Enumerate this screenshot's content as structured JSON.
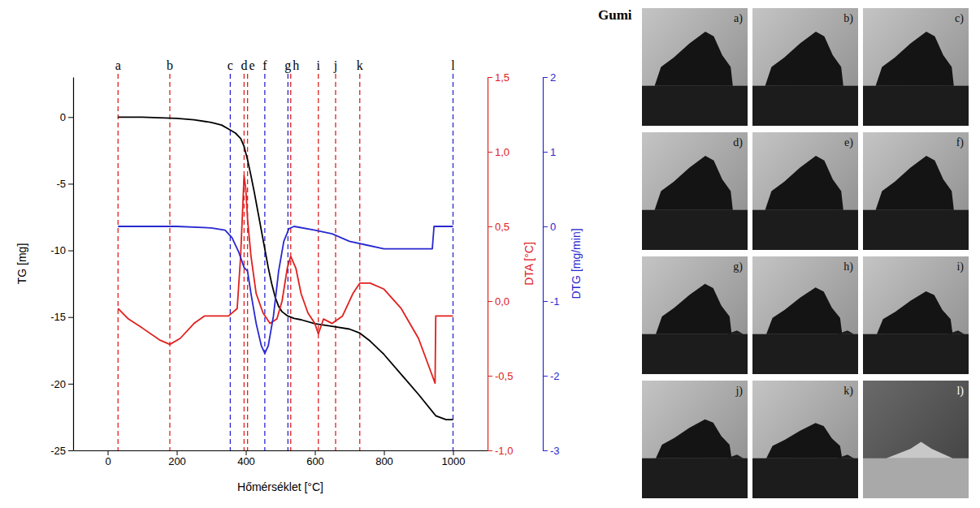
{
  "chart_data": {
    "type": "line",
    "x_label": "Hőmérséklet [°C]",
    "xlim": [
      -100,
      1100
    ],
    "xticks": [
      0,
      200,
      400,
      600,
      800,
      1000
    ],
    "y_label": "TG [mg]",
    "ylim": [
      -25,
      3
    ],
    "yticks": [
      -25,
      -20,
      -15,
      -10,
      -5,
      0
    ],
    "y2_label": "DTA [°C]",
    "y2lim": [
      -1,
      1.5
    ],
    "y2ticks": [
      {
        "value": -1,
        "label": "-1,0"
      },
      {
        "value": -0.5,
        "label": "-0,5"
      },
      {
        "value": 0,
        "label": "0,0"
      },
      {
        "value": 0.5,
        "label": "0,5"
      },
      {
        "value": 1,
        "label": "1,0"
      },
      {
        "value": 1.5,
        "label": "1,5"
      }
    ],
    "y3_label": "DTG [mg/min]",
    "y3lim": [
      -3,
      2
    ],
    "y3ticks": [
      -3,
      -2,
      -1,
      0,
      1,
      2
    ],
    "grid": false,
    "series": [
      {
        "color": "#000000",
        "x": [
          30,
          100,
          200,
          250,
          300,
          330,
          350,
          370,
          385,
          395,
          405,
          415,
          425,
          435,
          445,
          455,
          465,
          475,
          485,
          495,
          505,
          520,
          540,
          560,
          600,
          650,
          700,
          730,
          760,
          800,
          850,
          900,
          950,
          980,
          1000
        ],
        "values": [
          0,
          0,
          -0.1,
          -0.2,
          -0.4,
          -0.6,
          -0.9,
          -1.2,
          -1.6,
          -2.2,
          -3.2,
          -4.4,
          -5.7,
          -7.1,
          -8.5,
          -9.9,
          -11.3,
          -12.5,
          -13.5,
          -14.2,
          -14.6,
          -14.9,
          -15.1,
          -15.2,
          -15.5,
          -15.7,
          -15.9,
          -16.2,
          -16.8,
          -17.8,
          -19.3,
          -20.8,
          -22.4,
          -22.7,
          -22.7
        ]
      },
      {
        "color": "#e0201e",
        "axis": "y2",
        "x": [
          30,
          60,
          100,
          150,
          180,
          210,
          250,
          280,
          350,
          375,
          385,
          395,
          400,
          405,
          415,
          430,
          450,
          470,
          490,
          505,
          520,
          530,
          545,
          560,
          580,
          600,
          610,
          625,
          650,
          680,
          710,
          730,
          760,
          800,
          850,
          900,
          940,
          948,
          950,
          1000
        ],
        "values": [
          -0.05,
          -0.12,
          -0.18,
          -0.26,
          -0.29,
          -0.25,
          -0.15,
          -0.1,
          -0.1,
          -0.05,
          0.3,
          0.84,
          0.75,
          0.55,
          0.3,
          0.05,
          -0.08,
          -0.15,
          -0.12,
          0.0,
          0.22,
          0.3,
          0.22,
          0.05,
          -0.08,
          -0.15,
          -0.22,
          -0.12,
          -0.15,
          -0.1,
          0.05,
          0.12,
          0.12,
          0.08,
          -0.05,
          -0.25,
          -0.5,
          -0.55,
          -0.1,
          -0.1
        ]
      },
      {
        "color": "#2828d0",
        "axis": "y3",
        "x": [
          30,
          200,
          300,
          340,
          360,
          380,
          395,
          405,
          415,
          430,
          445,
          455,
          465,
          480,
          495,
          510,
          525,
          540,
          600,
          650,
          700,
          750,
          800,
          900,
          940,
          945,
          1000
        ],
        "values": [
          0,
          0,
          -0.02,
          -0.05,
          -0.15,
          -0.35,
          -0.55,
          -0.6,
          -0.9,
          -1.3,
          -1.6,
          -1.7,
          -1.6,
          -1.2,
          -0.6,
          -0.2,
          -0.03,
          0,
          -0.05,
          -0.1,
          -0.2,
          -0.25,
          -0.3,
          -0.3,
          -0.3,
          0,
          0
        ]
      }
    ],
    "events": [
      {
        "label": "a",
        "x": 30,
        "color": "#e0201e"
      },
      {
        "label": "b",
        "x": 180,
        "color": "#e0201e"
      },
      {
        "label": "c",
        "x": 355,
        "color": "#2828d0"
      },
      {
        "label": "d",
        "x": 395,
        "color": "#e0201e"
      },
      {
        "label": "e",
        "x": 405,
        "color": "#e0201e"
      },
      {
        "label": "f",
        "x": 455,
        "color": "#2828d0"
      },
      {
        "label": "g",
        "x": 522,
        "color": "#2828d0"
      },
      {
        "label": "h",
        "x": 530,
        "color": "#e0201e"
      },
      {
        "label": "i",
        "x": 610,
        "color": "#e0201e"
      },
      {
        "label": "j",
        "x": 660,
        "color": "#e0201e"
      },
      {
        "label": "k",
        "x": 730,
        "color": "#e0201e"
      },
      {
        "label": "l",
        "x": 1000,
        "color": "#2828d0"
      }
    ]
  },
  "photos": {
    "title": "Gumi",
    "labels": [
      "a)",
      "b)",
      "c)",
      "d)",
      "e)",
      "f)",
      "g)",
      "h)",
      "i)",
      "j)",
      "k)",
      "l)"
    ]
  }
}
